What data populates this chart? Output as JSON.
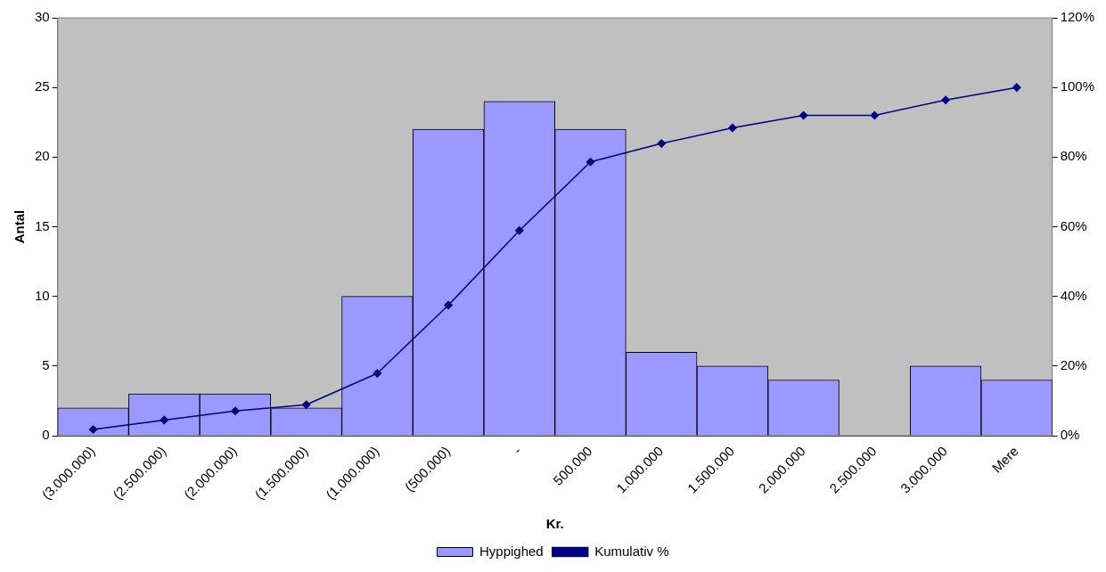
{
  "chart_data": {
    "type": "bar",
    "xlabel": "Kr.",
    "ylabel": "Antal",
    "categories": [
      "(3.000.000)",
      "(2.500.000)",
      "(2.000.000)",
      "(1.500.000)",
      "(1.000.000)",
      "(500.000)",
      "-",
      "500.000",
      "1.000.000",
      "1.500.000",
      "2.000.000",
      "2.500.000",
      "3.000.000",
      "Mere"
    ],
    "series": [
      {
        "name": "Hyppighed",
        "color": "#9999ff",
        "values": [
          2,
          3,
          3,
          2,
          10,
          22,
          24,
          22,
          6,
          5,
          4,
          0,
          5,
          4
        ]
      },
      {
        "name": "Kumulativ %",
        "type": "line",
        "axis": "y2",
        "color": "#000080",
        "marker": "diamond",
        "line_style": "solid",
        "values": [
          1.8,
          4.5,
          7.1,
          8.9,
          17.9,
          37.5,
          58.9,
          78.6,
          83.9,
          88.4,
          92.0,
          92.0,
          96.4,
          100
        ]
      }
    ],
    "ylim": [
      0,
      30
    ],
    "yticks": [
      0,
      5,
      10,
      15,
      20,
      25,
      30
    ],
    "y2lim": [
      0,
      120
    ],
    "y2ticks": [
      {
        "value": 0,
        "label": "0%"
      },
      {
        "value": 20,
        "label": "20%"
      },
      {
        "value": 40,
        "label": "40%"
      },
      {
        "value": 60,
        "label": "60%"
      },
      {
        "value": 80,
        "label": "80%"
      },
      {
        "value": 100,
        "label": "100%"
      },
      {
        "value": 120,
        "label": "120%"
      }
    ],
    "grid": false,
    "legend": "bottom"
  }
}
